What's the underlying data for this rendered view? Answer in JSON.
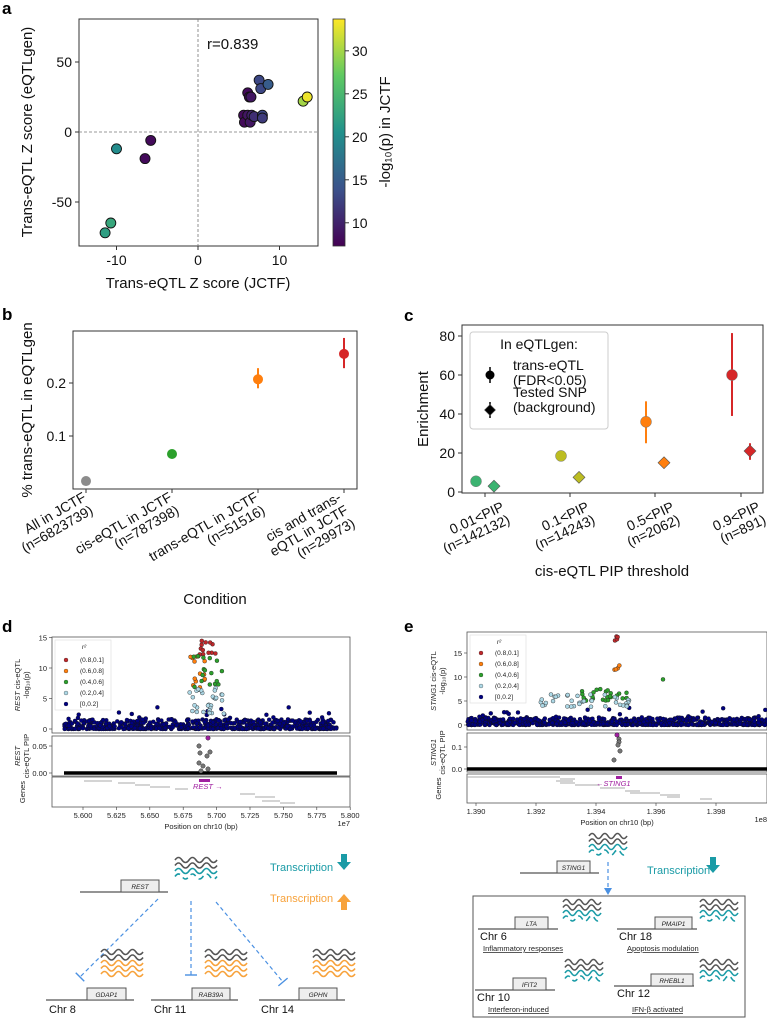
{
  "panel_labels": [
    "a",
    "b",
    "c",
    "d",
    "e"
  ],
  "chart_data": [
    {
      "type": "scatter",
      "xlabel": "Trans-eQTL Z score (JCTF)",
      "ylabel": "Trans-eQTL Z score (eQTLgen)",
      "xlim": [
        -14.6,
        14.7
      ],
      "ylim": [
        -81,
        80
      ],
      "xticks": [
        -10,
        0,
        10
      ],
      "yticks": [
        -50,
        0,
        50
      ],
      "annotation": "r=0.839",
      "colorbar": {
        "label": "-log₁₀(p) in JCTF",
        "range": [
          7.3,
          33.7
        ],
        "ticks": [
          10,
          15,
          20,
          25,
          30
        ],
        "colormap": "viridis"
      },
      "points": [
        [
          -11.4,
          -72,
          22
        ],
        [
          -10.7,
          -65,
          23
        ],
        [
          -10,
          -12,
          20
        ],
        [
          -6.5,
          -19,
          8
        ],
        [
          -5.8,
          -6,
          8
        ],
        [
          5.6,
          12,
          8
        ],
        [
          5.7,
          7,
          8
        ],
        [
          6.1,
          12,
          9
        ],
        [
          6.4,
          7,
          9
        ],
        [
          6.6,
          12,
          10
        ],
        [
          6.1,
          28,
          8
        ],
        [
          6.3,
          25,
          8
        ],
        [
          6.5,
          25,
          9
        ],
        [
          6.9,
          11,
          11
        ],
        [
          7.5,
          37,
          13
        ],
        [
          7.7,
          31,
          13
        ],
        [
          8.6,
          34,
          15
        ],
        [
          7.9,
          12,
          13
        ],
        [
          7.9,
          10,
          12
        ],
        [
          12.9,
          22,
          30
        ],
        [
          13.4,
          25,
          33
        ]
      ]
    },
    {
      "type": "scatter",
      "xlabel": "Condition",
      "ylabel": "% trans-eQTL in eQTLgen",
      "yticks": [
        0.1,
        0.2
      ],
      "ylim": [
        0,
        0.298
      ],
      "categories": [
        [
          "All in JCTF",
          "(n=6823739)"
        ],
        [
          "cis-eQTL in JCTF",
          "(n=787398)"
        ],
        [
          "trans-eQTL in JCTF",
          "(n=51516)"
        ],
        [
          "cis and trans-",
          "eQTL in JCTF",
          "(n=29973)"
        ]
      ],
      "values": [
        0.015,
        0.066,
        0.207,
        0.255
      ],
      "err": [
        [
          0.015,
          0.015
        ],
        [
          0.066,
          0.066
        ],
        [
          0.19,
          0.228
        ],
        [
          0.228,
          0.285
        ]
      ],
      "colors": [
        "#8c8c8c",
        "#2ca02c",
        "#ff7f0e",
        "#d62728"
      ]
    },
    {
      "type": "scatter",
      "xlabel": "cis-eQTL PIP threshold",
      "ylabel": "Enrichment",
      "yticks": [
        0,
        20,
        40,
        60,
        80
      ],
      "ylim": [
        -2,
        85
      ],
      "categories": [
        [
          "0.01<PIP",
          "(n=142132)"
        ],
        [
          "0.1<PIP",
          "(n=14243)"
        ],
        [
          "0.5<PIP",
          "(n=2062)"
        ],
        [
          "0.9<PIP",
          "(n=891)"
        ]
      ],
      "colors": [
        "#3cb371",
        "#bcbd22",
        "#ff7f0e",
        "#d62728"
      ],
      "legend": {
        "title": "In eQTLgen:",
        "placement": "upper-left"
      },
      "series": [
        {
          "name": [
            "trans-eQTL",
            "(FDR<0.05)"
          ],
          "marker": "circle",
          "values": [
            5.5,
            18.5,
            36,
            60
          ],
          "err": [
            [
              4.5,
              6.5
            ],
            [
              16,
              21
            ],
            [
              25,
              46.5
            ],
            [
              39,
              81.5
            ]
          ]
        },
        {
          "name": [
            "Tested SNP",
            "(background)"
          ],
          "marker": "diamond",
          "values": [
            3,
            7.5,
            15,
            21
          ],
          "err": [
            [
              2.5,
              3.5
            ],
            [
              7,
              8
            ],
            [
              14.5,
              15.5
            ],
            [
              16.5,
              25
            ]
          ]
        }
      ]
    },
    {
      "type": "scatter",
      "gene": "REST",
      "ylabel_top": [
        "cis-eQTL",
        "-log₁₀(p)"
      ],
      "ylabel_mid": [
        "cis-eQTL PIP"
      ],
      "ylabel_genes": "Genes",
      "yticks_top": [
        0,
        5,
        10,
        15
      ],
      "yticks_pip": [
        "0.00",
        "0.05"
      ],
      "xticks": [
        "5.600",
        "5.625",
        "5.650",
        "5.675",
        "5.700",
        "5.725",
        "5.750",
        "5.775",
        "5.800"
      ],
      "x_offset": "1e7",
      "xlabel": "Position on chr10 (bp)",
      "gene_label": "REST →",
      "legend": {
        "title": "r²",
        "entries": [
          "(0.8,0.1]",
          "(0.6,0.8]",
          "(0.4,0.6]",
          "(0.2,0.4]",
          "[0,0.2]"
        ],
        "colors": [
          "#c0282b",
          "#ff7f0e",
          "#2ca02c",
          "#add8e6",
          "#000080"
        ]
      }
    },
    {
      "type": "scatter",
      "gene": "STING1",
      "ylabel_top": [
        "cis-eQTL",
        "-log₁₀(p)"
      ],
      "ylabel_mid": [
        "cis-eQTL PIP"
      ],
      "ylabel_genes": "Genes",
      "yticks_top": [
        0,
        5,
        10,
        15
      ],
      "yticks_pip": [
        "0.0",
        "0.1"
      ],
      "xticks": [
        "1.390",
        "1.392",
        "1.394",
        "1.396",
        "1.398"
      ],
      "x_offset": "1e8",
      "xlabel": "Position on chr10 (bp)",
      "gene_label": "←STING1",
      "legend": {
        "title": "r²",
        "entries": [
          "(0.8,0.1]",
          "(0.6,0.8]",
          "(0.4,0.6]",
          "(0.2,0.4]",
          "[0,0.2]"
        ],
        "colors": [
          "#c0282b",
          "#ff7f0e",
          "#2ca02c",
          "#add8e6",
          "#000080"
        ]
      }
    }
  ],
  "diagrams": {
    "d": {
      "source_gene": "REST",
      "down_label": "Transcription",
      "up_label": "Transcription",
      "targets": [
        {
          "gene": "GDAP1",
          "chr": "Chr 8"
        },
        {
          "gene": "RAB39A",
          "chr": "Chr 11"
        },
        {
          "gene": "GPHN",
          "chr": "Chr 14"
        }
      ]
    },
    "e": {
      "source_gene": "STING1",
      "down_label": "Transcription",
      "targets": [
        {
          "gene": "LTA",
          "chr": "Chr 6",
          "function": "Inflammatory responses"
        },
        {
          "gene": "PMAIP1",
          "chr": "Chr 18",
          "function": "Apoptosis modulation"
        },
        {
          "gene": "IFIT2",
          "chr": "Chr 10",
          "function": "Interferon-induced"
        },
        {
          "gene": "RHEBL1",
          "chr": "Chr 12",
          "function": "IFN-β activated"
        }
      ]
    }
  },
  "colors": {
    "teal": "#1a9ba6",
    "orange": "#f7a23b",
    "blue_dash": "#4a90e2",
    "purple": "#a020a0"
  }
}
